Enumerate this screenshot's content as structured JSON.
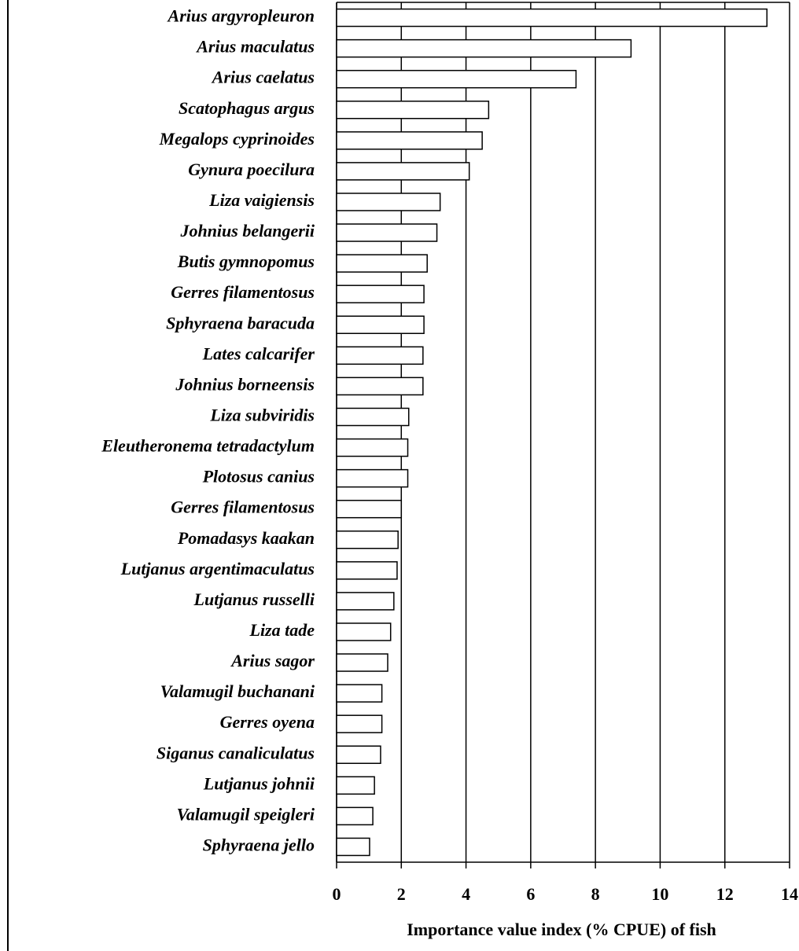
{
  "chart_data": {
    "type": "barh",
    "xlabel": "Importance value index (% CPUE) of fish",
    "categories": [
      "Arius argyropleuron",
      "Arius maculatus",
      "Arius caelatus",
      "Scatophagus argus",
      "Megalops cyprinoides",
      "Gynura poecilura",
      "Liza vaigiensis",
      "Johnius belangerii",
      "Butis gymnopomus",
      "Gerres filamentosus",
      "Sphyraena baracuda",
      "Lates calcarifer",
      "Johnius borneensis",
      "Liza subviridis",
      "Eleutheronema tetradactylum",
      "Plotosus canius",
      "Gerres filamentosus",
      "Pomadasys kaakan",
      "Lutjanus argentimaculatus",
      "Lutjanus  russelli",
      "Liza tade",
      "Arius sagor",
      "Valamugil buchanani",
      "Gerres oyena",
      "Siganus canaliculatus",
      "Lutjanus johnii",
      "Valamugil speigleri",
      "Sphyraena jello"
    ],
    "values": [
      13.3,
      9.1,
      7.4,
      4.7,
      4.5,
      4.1,
      3.2,
      3.1,
      2.8,
      2.7,
      2.7,
      2.67,
      2.67,
      2.23,
      2.2,
      2.2,
      2.0,
      1.9,
      1.87,
      1.77,
      1.67,
      1.58,
      1.4,
      1.4,
      1.36,
      1.17,
      1.12,
      1.02
    ],
    "color": "#ffffff",
    "xlim": [
      0,
      14
    ],
    "xticks": [
      0,
      2,
      4,
      6,
      8,
      10,
      12,
      14
    ],
    "grid": true
  }
}
